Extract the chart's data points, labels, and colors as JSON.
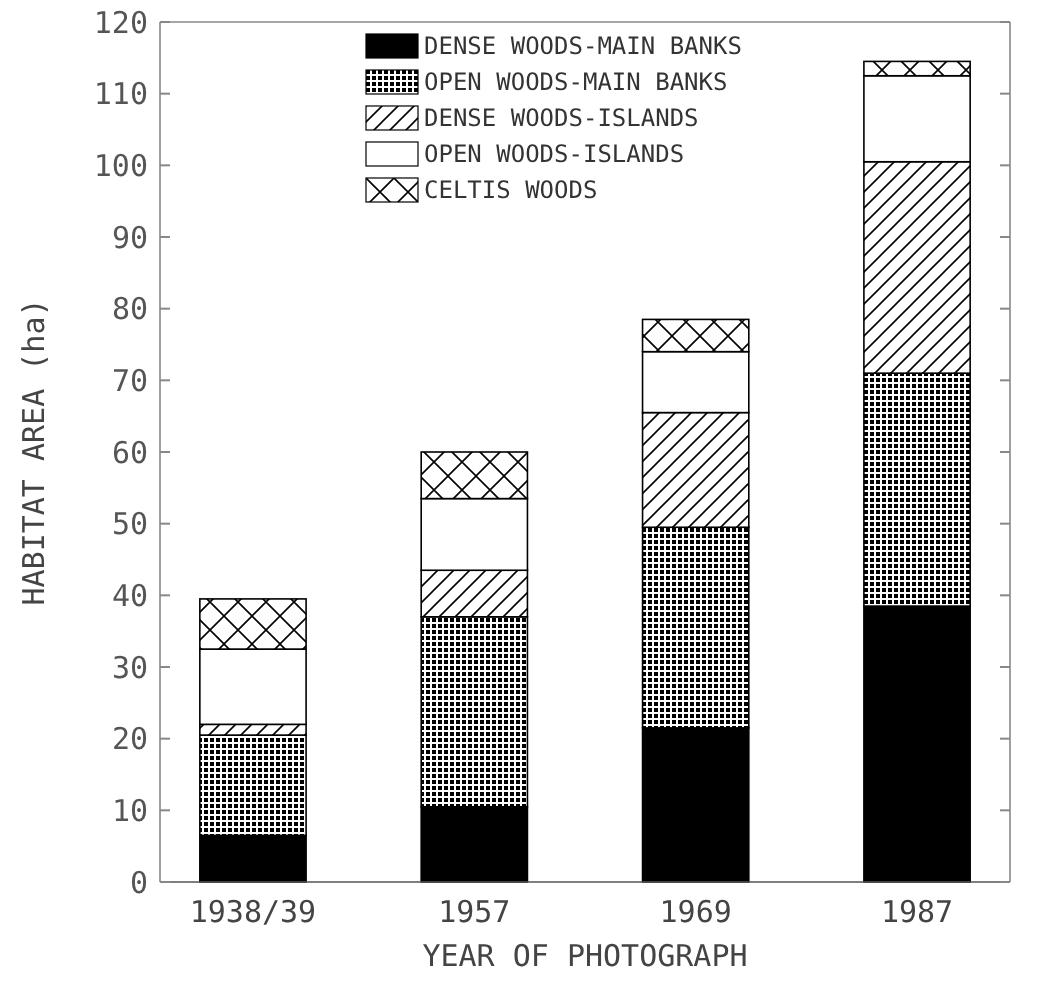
{
  "chart_data": {
    "type": "bar",
    "stacked": true,
    "xlabel": "YEAR OF PHOTOGRAPH",
    "ylabel": "HABITAT AREA (ha)",
    "categories": [
      "1938/39",
      "1957",
      "1969",
      "1987"
    ],
    "series": [
      {
        "name": "DENSE WOODS-MAIN BANKS",
        "color": "#000000",
        "values": [
          6.5,
          10.5,
          21.5,
          38.5
        ]
      },
      {
        "name": "OPEN WOODS-MAIN BANKS",
        "color": "#000000",
        "values": [
          14,
          26.5,
          28,
          32.5
        ]
      },
      {
        "name": "DENSE WOODS-ISLANDS",
        "color": "#000000",
        "values": [
          1.5,
          6.5,
          16,
          29.5
        ]
      },
      {
        "name": "OPEN WOODS-ISLANDS",
        "color": "#ffffff",
        "values": [
          10.5,
          10,
          8.5,
          12
        ]
      },
      {
        "name": "CELTIS WOODS",
        "color": "#000000",
        "values": [
          7,
          6.5,
          4.5,
          2
        ]
      }
    ],
    "ylim": [
      0,
      120
    ],
    "yticks": [
      0,
      10,
      20,
      30,
      40,
      50,
      60,
      70,
      80,
      90,
      100,
      110,
      120
    ],
    "legend": "top",
    "grid": false
  }
}
